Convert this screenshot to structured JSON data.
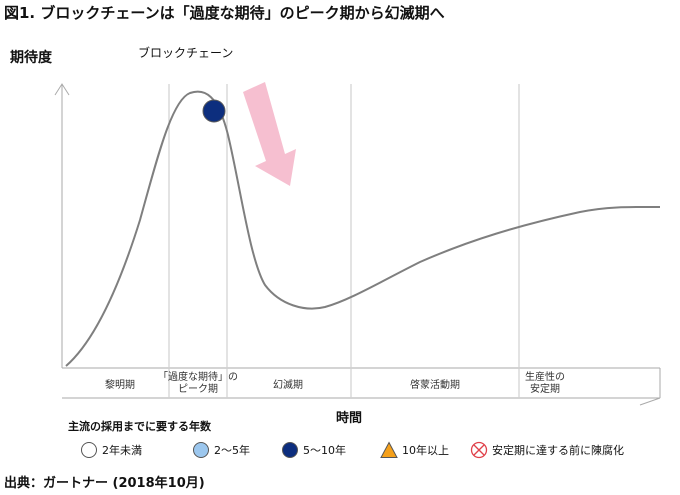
{
  "figure_title": "図1. ブロックチェーンは「過度な期待」のピーク期から幻滅期へ",
  "y_axis_label": "期待度",
  "x_axis_label": "時間",
  "annotation": "ブロックチェーン",
  "phases": [
    "黎明期",
    "「過度な期待」の\nピーク期",
    "幻滅期",
    "啓蒙活動期",
    "生産性の\n安定期"
  ],
  "legend": {
    "title": "主流の採用までに要する年数",
    "items": [
      {
        "label": "2年未満",
        "icon": "white-circle",
        "color": "#ffffff"
      },
      {
        "label": "2〜5年",
        "icon": "light-blue-circle",
        "color": "#9cc7ee"
      },
      {
        "label": "5〜10年",
        "icon": "dark-blue-circle",
        "color": "#0d2e7e"
      },
      {
        "label": "10年以上",
        "icon": "orange-triangle",
        "color": "#f5a01a"
      },
      {
        "label": "安定期に達する前に陳腐化",
        "icon": "red-crossed-circle",
        "color": "#e0414a"
      }
    ]
  },
  "marker": {
    "type": "dark-blue-circle",
    "color": "#0d2e7e"
  },
  "arrow": {
    "color": "#f6bfd0",
    "direction": "down"
  },
  "source": "出典：ガートナー (2018年10月)"
}
